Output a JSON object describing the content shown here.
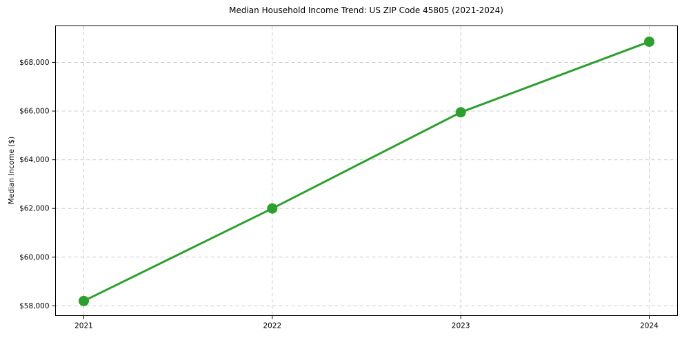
{
  "figure": {
    "background": "#ffffff"
  },
  "chart_data": {
    "type": "line",
    "title": "Median Household Income Trend: US ZIP Code 45805 (2021-2024)",
    "ylabel": "Median Income ($)",
    "xlabel": "",
    "x": [
      2021,
      2022,
      2023,
      2024
    ],
    "xtick_labels": [
      "2021",
      "2022",
      "2023",
      "2024"
    ],
    "series": [
      {
        "values": [
          58200,
          62000,
          65950,
          68850
        ],
        "color": "#2ca02c"
      }
    ],
    "yticks": [
      58000,
      60000,
      62000,
      64000,
      66000,
      68000
    ],
    "ytick_labels": [
      "$58,000",
      "$60,000",
      "$62,000",
      "$64,000",
      "$66,000",
      "$68,000"
    ],
    "xlim": [
      2020.85,
      2024.15
    ],
    "ylim": [
      57600,
      69500
    ],
    "grid": {
      "visible": true,
      "style": "dashed",
      "axes": "both",
      "color": "#cccccc"
    },
    "legend": {
      "visible": false
    },
    "line_width": 3,
    "marker": "circle",
    "marker_radius": 7.5,
    "spine_color": "#000000",
    "text_color": "#000000"
  }
}
